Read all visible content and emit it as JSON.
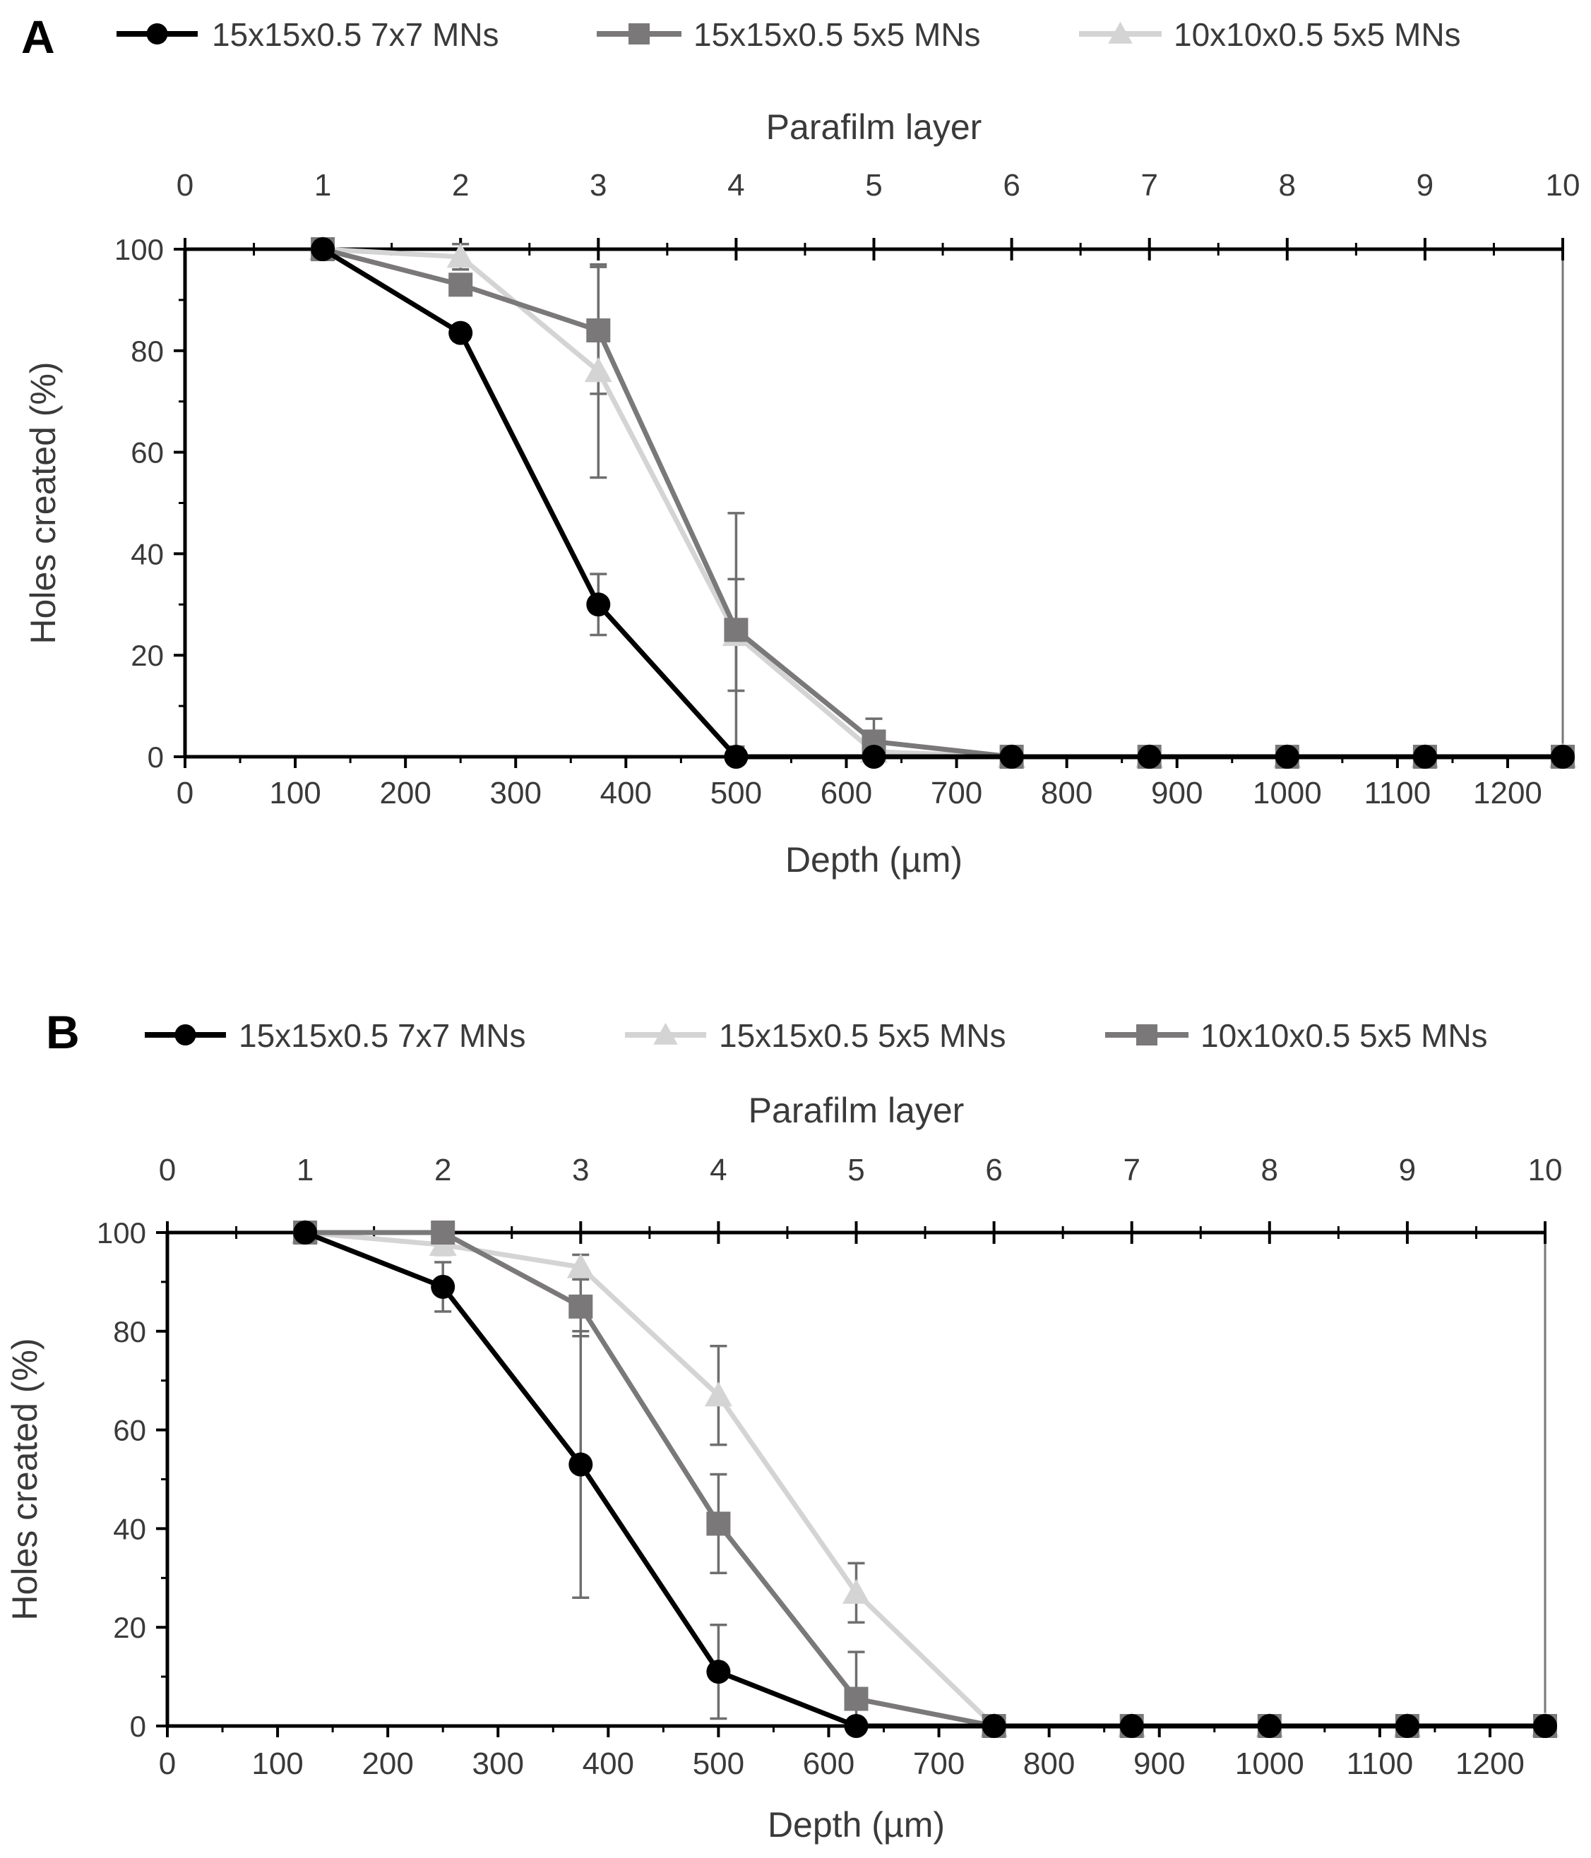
{
  "chart_data": [
    {
      "type": "line",
      "panel": "A",
      "legend_placement": "top",
      "ylabel": "Holes created (%)",
      "xlabel": "Depth (µm)",
      "x2label": "Parafilm layer",
      "ylim": [
        0,
        100
      ],
      "xlim": [
        0,
        1250
      ],
      "yticks": [
        "0",
        "20",
        "40",
        "60",
        "80",
        "100"
      ],
      "xticks": [
        "0",
        "100",
        "200",
        "300",
        "400",
        "500",
        "600",
        "700",
        "800",
        "900",
        "1000",
        "1100",
        "1200"
      ],
      "x2ticks": [
        "0",
        "1",
        "2",
        "3",
        "4",
        "5",
        "6",
        "7",
        "8",
        "9",
        "10"
      ],
      "x": [
        125,
        250,
        375,
        500,
        625,
        750,
        875,
        1000,
        1125,
        1250
      ],
      "series": [
        {
          "name": "15x15x0.5 7x7 MNs",
          "marker": "circle",
          "color": "#000000",
          "values": [
            100,
            83.5,
            30,
            0,
            0,
            0,
            0,
            0,
            0,
            0
          ],
          "errors": [
            0,
            1.5,
            6,
            0,
            0,
            0,
            0,
            0,
            0,
            0
          ]
        },
        {
          "name": "15x15x0.5 5x5 MNs",
          "marker": "square",
          "color": "#7a7878",
          "values": [
            100,
            93,
            84,
            25,
            3,
            0,
            0,
            0,
            0,
            0
          ],
          "errors": [
            0,
            1.5,
            12.5,
            23,
            4.5,
            0,
            0,
            0,
            0,
            0
          ]
        },
        {
          "name": "10x10x0.5 5x5 MNs",
          "marker": "triangle",
          "color": "#d4d4d4",
          "values": [
            100,
            98.5,
            76,
            24,
            1,
            0,
            0,
            0,
            0,
            0
          ],
          "errors": [
            0,
            2.5,
            21,
            11,
            1,
            0,
            0,
            0,
            0,
            0
          ]
        }
      ]
    },
    {
      "type": "line",
      "panel": "B",
      "legend_placement": "top",
      "ylabel": "Holes created (%)",
      "xlabel": "Depth (µm)",
      "x2label": "Parafilm layer",
      "ylim": [
        0,
        100
      ],
      "xlim": [
        0,
        1250
      ],
      "yticks": [
        "0",
        "20",
        "40",
        "60",
        "80",
        "100"
      ],
      "xticks": [
        "0",
        "100",
        "200",
        "300",
        "400",
        "500",
        "600",
        "700",
        "800",
        "900",
        "1000",
        "1100",
        "1200"
      ],
      "x2ticks": [
        "0",
        "1",
        "2",
        "3",
        "4",
        "5",
        "6",
        "7",
        "8",
        "9",
        "10"
      ],
      "x": [
        125,
        250,
        375,
        500,
        625,
        750,
        875,
        1000,
        1125,
        1250
      ],
      "series": [
        {
          "name": "15x15x0.5 7x7 MNs",
          "marker": "circle",
          "color": "#000000",
          "values": [
            100,
            89,
            53,
            11,
            0,
            0,
            0,
            0,
            0,
            0
          ],
          "errors": [
            0,
            5,
            27,
            9.5,
            0,
            0,
            0,
            0,
            0,
            0
          ]
        },
        {
          "name": "15x15x0.5 5x5 MNs",
          "marker": "triangle",
          "color": "#d4d4d4",
          "values": [
            100,
            97.5,
            93,
            67,
            27,
            0,
            0,
            0,
            0,
            0
          ],
          "errors": [
            0,
            2,
            2.5,
            10,
            6,
            0,
            0,
            0,
            0,
            0
          ]
        },
        {
          "name": "10x10x0.5 5x5 MNs",
          "marker": "square",
          "color": "#7a7878",
          "values": [
            100,
            100,
            85,
            41,
            5.5,
            0,
            0,
            0,
            0,
            0
          ],
          "errors": [
            0,
            0,
            6,
            10,
            9.5,
            0,
            0,
            0,
            0,
            0
          ]
        }
      ]
    }
  ]
}
